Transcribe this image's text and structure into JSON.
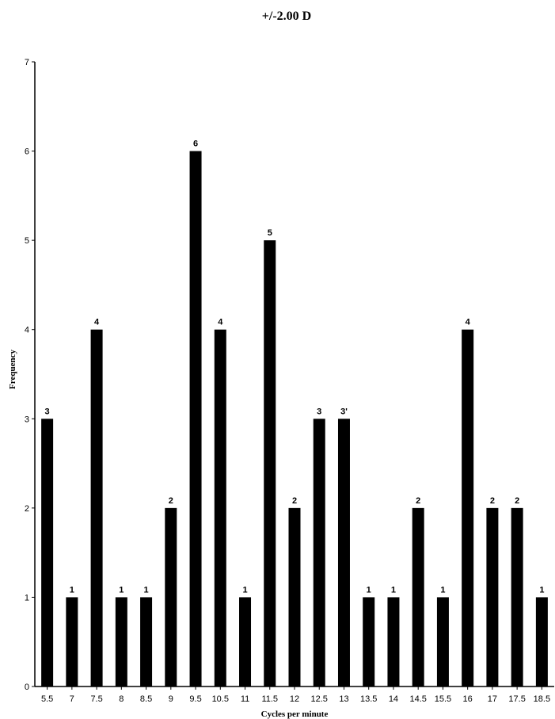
{
  "chart_data": {
    "type": "bar",
    "title": "+/-2.00 D",
    "xlabel": "Cycles per minute",
    "ylabel": "Frequency",
    "categories": [
      "5.5",
      "7",
      "7.5",
      "8",
      "8.5",
      "9",
      "9.5",
      "10.5",
      "11",
      "11.5",
      "12",
      "12.5",
      "13",
      "13.5",
      "14",
      "14.5",
      "15.5",
      "16",
      "17",
      "17.5",
      "18.5"
    ],
    "values": [
      3,
      1,
      4,
      1,
      1,
      2,
      6,
      4,
      1,
      5,
      2,
      3,
      3,
      1,
      1,
      2,
      1,
      4,
      2,
      2,
      1
    ],
    "data_labels": [
      "3",
      "1",
      "4",
      "1",
      "1",
      "2",
      "6",
      "4",
      "1",
      "5",
      "2",
      "3",
      "3'",
      "1",
      "1",
      "2",
      "1",
      "4",
      "2",
      "2",
      "1"
    ],
    "ylim": [
      0,
      7
    ],
    "yticks": [
      0,
      1,
      2,
      3,
      4,
      5,
      6,
      7
    ],
    "grid": false,
    "legend": "none",
    "bar_color": "#000000"
  }
}
